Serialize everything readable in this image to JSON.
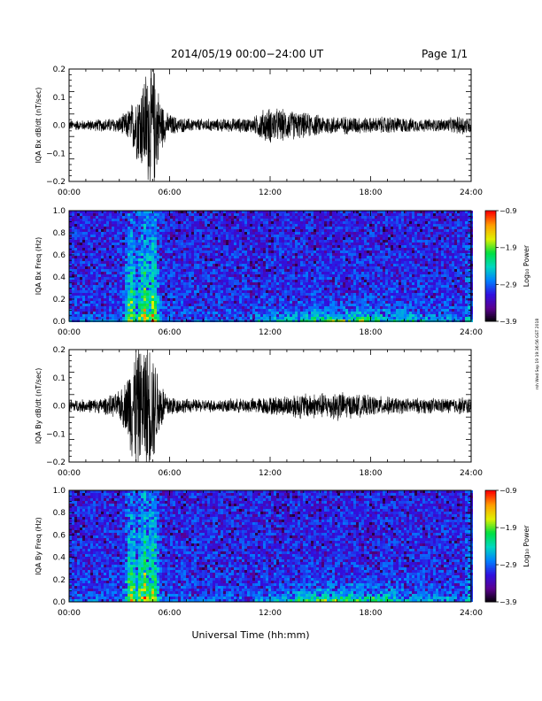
{
  "header": {
    "title": "2014/05/19  00:00−24:00 UT",
    "page": "Page 1/1"
  },
  "footer": {
    "xlabel": "Universal Time (hh:mm)",
    "stamp": "rsh Wed Sep 19 19:36:56 GST 2018"
  },
  "colorbar": {
    "label": "Log₁₀ Power",
    "ticks": [
      "−0.9",
      "−1.9",
      "−2.9",
      "−3.9"
    ],
    "range": [
      -3.9,
      -0.9
    ],
    "colors": [
      "#000000",
      "#5a0090",
      "#3010e0",
      "#0080ff",
      "#00d8c0",
      "#00e040",
      "#e0f000",
      "#ffa000",
      "#ff0000"
    ]
  },
  "chart_data": [
    {
      "type": "line",
      "ylabel": "IQA Bx dB/dt (nT/sec)",
      "xticks": [
        "00:00",
        "06:00",
        "12:00",
        "18:00",
        "24:00"
      ],
      "xlim": [
        0,
        24
      ],
      "ylim": [
        -0.2,
        0.2
      ],
      "yticks": [
        "0.2",
        "0.1",
        "0.0",
        "−0.1",
        "−0.2"
      ],
      "envelope": {
        "x": [
          0,
          1,
          2,
          2.9,
          3.4,
          3.7,
          4,
          4.3,
          4.6,
          4.9,
          5.1,
          5.4,
          5.8,
          6.5,
          7.5,
          9,
          11,
          11.5,
          12,
          12.5,
          13,
          14,
          15,
          16,
          17,
          18,
          19,
          20,
          21,
          22,
          23,
          23.5,
          24
        ],
        "amplitude": [
          0.02,
          0.02,
          0.025,
          0.03,
          0.05,
          0.08,
          0.13,
          0.17,
          0.22,
          0.25,
          0.24,
          0.12,
          0.05,
          0.03,
          0.025,
          0.025,
          0.03,
          0.06,
          0.07,
          0.065,
          0.06,
          0.05,
          0.04,
          0.035,
          0.035,
          0.03,
          0.035,
          0.03,
          0.025,
          0.025,
          0.03,
          0.04,
          0.03
        ]
      }
    },
    {
      "type": "heatmap",
      "ylabel": "IQA Bx Freq (Hz)",
      "xticks": [
        "00:00",
        "06:00",
        "12:00",
        "18:00",
        "24:00"
      ],
      "xlim": [
        0,
        24
      ],
      "ylim": [
        0,
        1.0
      ],
      "yticks": [
        "1.0",
        "0.8",
        "0.6",
        "0.4",
        "0.2",
        "0.0"
      ],
      "bursts": [
        {
          "t": 3.3,
          "width": 0.05,
          "strength": 0.35
        },
        {
          "t": 3.7,
          "width": 0.3,
          "strength": 0.8
        },
        {
          "t": 4.2,
          "width": 0.1,
          "strength": 0.6
        },
        {
          "t": 4.5,
          "width": 0.25,
          "strength": 1.0
        },
        {
          "t": 5.0,
          "width": 0.3,
          "strength": 0.9
        },
        {
          "t": 7.55,
          "width": 0.03,
          "strength": 0.55
        },
        {
          "t": 23.7,
          "width": 0.12,
          "strength": 0.35
        }
      ]
    },
    {
      "type": "line",
      "ylabel": "IQA By dB/dt (nT/sec)",
      "xticks": [
        "00:00",
        "06:00",
        "12:00",
        "18:00",
        "24:00"
      ],
      "xlim": [
        0,
        24
      ],
      "ylim": [
        -0.2,
        0.2
      ],
      "yticks": [
        "0.2",
        "0.1",
        "0.0",
        "−0.1",
        "−0.2"
      ],
      "envelope": {
        "x": [
          0,
          1,
          2,
          2.9,
          3.4,
          3.7,
          4,
          4.3,
          4.6,
          4.9,
          5.1,
          5.4,
          5.8,
          6.5,
          7.5,
          9,
          11,
          12,
          13,
          13.5,
          14,
          15,
          15.5,
          16,
          16.5,
          17,
          18,
          19,
          20,
          21,
          22,
          23,
          23.5,
          24
        ],
        "amplitude": [
          0.025,
          0.025,
          0.03,
          0.05,
          0.1,
          0.2,
          0.25,
          0.22,
          0.27,
          0.25,
          0.2,
          0.12,
          0.05,
          0.03,
          0.025,
          0.025,
          0.03,
          0.035,
          0.04,
          0.05,
          0.05,
          0.05,
          0.05,
          0.06,
          0.05,
          0.045,
          0.04,
          0.035,
          0.03,
          0.03,
          0.03,
          0.03,
          0.035,
          0.03
        ]
      }
    },
    {
      "type": "heatmap",
      "ylabel": "IQA By Freq (Hz)",
      "xticks": [
        "00:00",
        "06:00",
        "12:00",
        "18:00",
        "24:00"
      ],
      "xlim": [
        0,
        24
      ],
      "ylim": [
        0,
        1.0
      ],
      "yticks": [
        "1.0",
        "0.8",
        "0.6",
        "0.4",
        "0.2",
        "0.0"
      ],
      "bursts": [
        {
          "t": 3.3,
          "width": 0.05,
          "strength": 0.35
        },
        {
          "t": 3.7,
          "width": 0.3,
          "strength": 0.85
        },
        {
          "t": 4.2,
          "width": 0.1,
          "strength": 0.65
        },
        {
          "t": 4.5,
          "width": 0.25,
          "strength": 1.0
        },
        {
          "t": 5.0,
          "width": 0.3,
          "strength": 0.9
        },
        {
          "t": 7.55,
          "width": 0.03,
          "strength": 0.55
        },
        {
          "t": 23.7,
          "width": 0.12,
          "strength": 0.35
        }
      ]
    }
  ]
}
